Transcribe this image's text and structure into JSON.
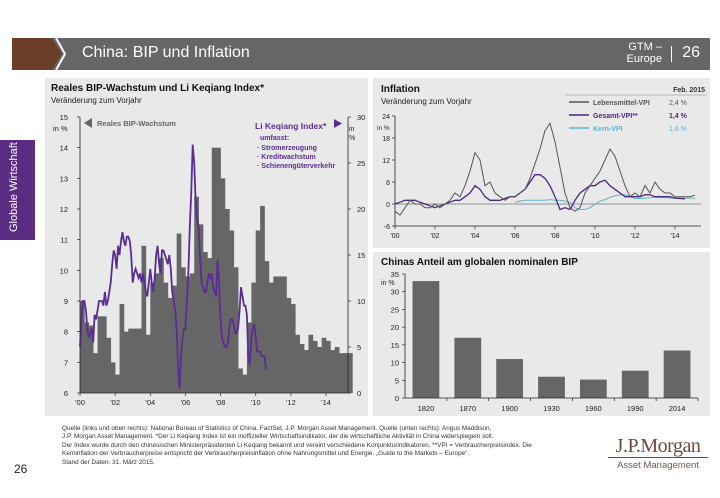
{
  "header": {
    "title": "China: BIP und Inflation",
    "gtm_line1": "GTM –",
    "gtm_line2": "Europe",
    "page": "26"
  },
  "sidebar": {
    "label": "Globale Wirtschaft"
  },
  "left_panel": {
    "title": "Reales BIP-Wachstum und Li Keqiang Index*",
    "subtitle": "Veränderung zum Vorjahr",
    "left_unit": "in %",
    "right_unit_1": "in",
    "right_unit_2": "%",
    "bar_legend": "Reales BIP-Wachstum",
    "line_legend": "Li Keqiang Index*",
    "line_note_title": "umfasst:",
    "line_note_items": [
      "Stromerzeugung",
      "Kreditwachstum",
      "Schienengüterverkehr"
    ]
  },
  "inflation_panel": {
    "title": "Inflation",
    "subtitle": "Veränderung zum Vorjahr",
    "unit": "in %",
    "legend_header": "Feb. 2015",
    "legend": [
      {
        "name": "Lebensmittel-VPI",
        "value": "2,4 %",
        "color": "#555555"
      },
      {
        "name": "Gesamt-VPI**",
        "value": "1,4 %",
        "color": "#4b2683"
      },
      {
        "name": "Kern-VPI",
        "value": "1,6 %",
        "color": "#5ab4d0"
      }
    ]
  },
  "share_panel": {
    "title": "Chinas Anteil am globalen nominalen BIP",
    "unit": "in %"
  },
  "footer": {
    "lines": [
      "Quelle (links und oben rechts): National Bureau of Statistics of China, FactSet, J.P. Morgan Asset Management. Quelle (unten rechts): Angus Maddison,",
      "J.P. Morgan Asset Management. *Der Li Keqiang Index ist ein inoffizieller Wirtschaftsindikator, der die wirtschaftliche Aktivität in China widerspiegeln soll.",
      "Der Index wurde durch den chinesischen Ministerpräsidenten Li Keqiang bekannt und vereint verschiedene Konjunkturindikatoren. **VPI = Verbraucherpreisindex. Die",
      "Kerninflation der Verbraucherpreise entspricht der Verbraucherpreisinflation ohne Nahrungsmittel und Energie. „Guide to the Markets – Europe“.",
      "Stand der Daten: 31. März 2015."
    ],
    "page_number": "26"
  },
  "logo": {
    "main": "J.P.Morgan",
    "sub": "Asset Management"
  },
  "chart_data": [
    {
      "type": "bar",
      "title": "Reales BIP-Wachstum und Li Keqiang Index*",
      "subtitle": "Veränderung zum Vorjahr",
      "x_ticks": [
        "'00",
        "'02",
        "'04",
        "'06",
        "'08",
        "'10",
        "'12",
        "'14"
      ],
      "ylim": [
        6,
        15
      ],
      "yticks": [
        6,
        7,
        8,
        9,
        10,
        11,
        12,
        13,
        14,
        15
      ],
      "y2lim": [
        0,
        30
      ],
      "y2ticks": [
        0,
        5,
        10,
        15,
        20,
        25,
        30
      ],
      "series": [
        {
          "name": "Reales BIP-Wachstum",
          "axis": "left",
          "kind": "bar",
          "color": "#666666",
          "x_start": 2000.0,
          "step": 0.25,
          "values": [
            9.0,
            8.3,
            8.2,
            7.3,
            8.5,
            8.5,
            7.8,
            7.0,
            6.6,
            8.9,
            8.0,
            8.1,
            8.1,
            8.1,
            10.8,
            7.9,
            9.6,
            9.9,
            10.4,
            9.6,
            9.1,
            9.5,
            11.2,
            10.1,
            9.8,
            9.9,
            12.4,
            11.5,
            10.6,
            10.4,
            14.0,
            14.0,
            13.0,
            12.0,
            11.3,
            10.1,
            6.8,
            6.6,
            8.3,
            9.6,
            11.3,
            12.1,
            10.3,
            9.6,
            9.8,
            9.8,
            9.8,
            9.1,
            8.9,
            7.9,
            7.6,
            7.4,
            7.9,
            7.7,
            7.5,
            7.8,
            7.7,
            7.4,
            7.5,
            7.3,
            7.3,
            7.3
          ]
        },
        {
          "name": "Li Keqiang Index*",
          "axis": "right",
          "kind": "line",
          "color": "#5a2d92",
          "x_start": 2000.0,
          "step": 0.0833,
          "values": [
            5,
            8,
            10,
            10,
            9,
            7,
            6,
            6.5,
            7,
            5.5,
            8.5,
            8,
            9,
            10,
            10,
            10,
            9.5,
            11,
            9.5,
            10,
            11,
            12,
            14,
            15.5,
            15,
            13.5,
            16,
            15,
            16.5,
            17.5,
            16.5,
            16,
            17,
            17,
            16.5,
            15,
            12,
            13,
            13.5,
            13,
            12.5,
            13,
            12,
            13,
            12,
            11,
            10.5,
            12,
            13.5,
            12,
            11,
            12.5,
            15,
            16,
            14,
            13,
            15.5,
            15.5,
            15,
            14.5,
            14,
            15,
            13.5,
            11,
            10,
            9,
            7,
            3,
            0.5,
            4,
            6,
            7,
            7,
            10,
            13,
            18,
            22,
            27,
            25,
            21,
            19,
            18,
            15,
            12,
            11.5,
            11,
            11,
            12,
            13,
            12.5,
            13,
            11.5,
            11,
            10.5,
            14.5,
            12,
            8,
            6,
            5.5,
            5,
            5,
            5.5,
            7,
            8,
            8,
            7.5,
            6.5,
            6.5,
            7,
            9,
            11.5,
            10.5,
            9.5,
            9.5,
            8.5,
            4,
            3,
            6,
            7,
            7.5,
            6,
            4.5,
            4.5,
            4.5,
            4,
            4,
            4,
            2.5
          ]
        }
      ]
    },
    {
      "type": "line",
      "title": "Inflation",
      "subtitle": "Veränderung zum Vorjahr",
      "x_ticks": [
        "'00",
        "'02",
        "'04",
        "'06",
        "'08",
        "'10",
        "'12",
        "'14"
      ],
      "ylim": [
        -6,
        24
      ],
      "yticks": [
        -6,
        0,
        6,
        12,
        18,
        24
      ],
      "series": [
        {
          "name": "Lebensmittel-VPI",
          "color": "#555555",
          "x_start": 2000.0,
          "step": 0.25,
          "values": [
            -2,
            -3,
            -1,
            1,
            0,
            0,
            -1,
            -1,
            0,
            -1,
            0,
            1,
            3,
            2,
            5,
            9,
            14,
            12,
            5,
            6,
            3,
            2,
            1,
            2,
            2,
            3,
            4,
            7,
            11,
            15,
            20,
            22,
            17,
            10,
            3,
            -1,
            -2,
            -1,
            3,
            5,
            7,
            9,
            12,
            15,
            13,
            9,
            5,
            2,
            3,
            2,
            5,
            3,
            6,
            4,
            3,
            3,
            2,
            2,
            2,
            2,
            2.4
          ]
        },
        {
          "name": "Gesamt-VPI**",
          "color": "#4b2683",
          "x_start": 2000.0,
          "step": 0.25,
          "values": [
            0,
            0.5,
            1,
            1,
            1,
            0.5,
            0,
            -0.5,
            -1,
            -0.5,
            0,
            0.5,
            1,
            1,
            2,
            3,
            5,
            4,
            2,
            1,
            1,
            1,
            1.5,
            2,
            2,
            3,
            4,
            6,
            8,
            8,
            7,
            5,
            2,
            -1.5,
            -1,
            -1.5,
            1,
            3,
            4,
            5,
            5,
            6,
            6.5,
            5,
            4,
            3,
            2,
            2,
            2,
            2,
            2.5,
            2.5,
            2,
            2,
            2,
            2,
            1.6,
            1.5,
            1.4
          ]
        },
        {
          "name": "Kern-VPI",
          "color": "#5ab4d0",
          "x_start": 2006.0,
          "step": 0.25,
          "values": [
            0.5,
            0.8,
            1,
            1,
            1,
            1,
            1,
            1.2,
            1,
            1,
            0.8,
            0.5,
            -1,
            -1.5,
            -1.5,
            -1,
            0,
            0.8,
            1.2,
            1.8,
            2.2,
            2.5,
            2.5,
            2,
            1.5,
            1.5,
            1.6,
            1.7,
            1.8,
            1.8,
            1.7,
            1.6,
            1.6,
            1.6,
            1.6,
            1.6,
            1.6
          ]
        }
      ]
    },
    {
      "type": "bar",
      "title": "Chinas Anteil am globalen nominalen BIP",
      "ylabel": "in %",
      "categories": [
        "1820",
        "1870",
        "1900",
        "1930",
        "1960",
        "1990",
        "2014"
      ],
      "values": [
        33,
        17,
        11,
        6,
        5.2,
        7.7,
        13.4
      ],
      "ylim": [
        0,
        35
      ],
      "yticks": [
        0,
        5,
        10,
        15,
        20,
        25,
        30,
        35
      ],
      "color": "#666666"
    }
  ]
}
